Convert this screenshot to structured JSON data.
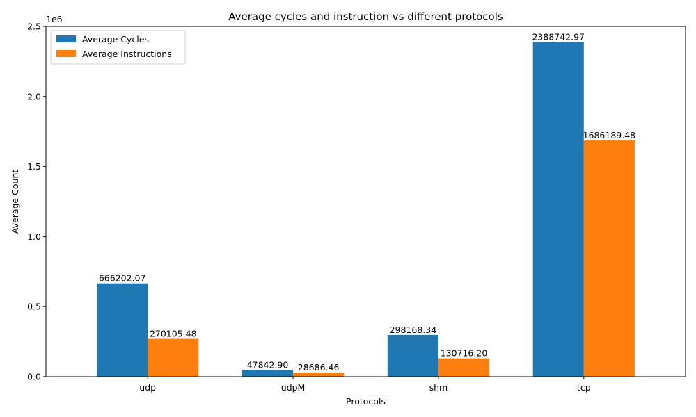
{
  "chart_data": {
    "type": "bar",
    "title": "Average cycles and instruction vs different protocols",
    "xlabel": "Protocols",
    "ylabel": "Average Count",
    "y_scale_multiplier": "1e6",
    "categories": [
      "udp",
      "udpM",
      "shm",
      "tcp"
    ],
    "series": [
      {
        "name": "Average Cycles",
        "color": "#1f77b4",
        "values": [
          666202.07,
          47842.9,
          298168.34,
          2388742.97
        ],
        "labels": [
          "666202.07",
          "47842.90",
          "298168.34",
          "2388742.97"
        ]
      },
      {
        "name": "Average Instructions",
        "color": "#ff7f0e",
        "values": [
          270105.48,
          28686.46,
          130716.2,
          1686189.48
        ],
        "labels": [
          "270105.48",
          "28686.46",
          "130716.20",
          "1686189.48"
        ]
      }
    ],
    "ylim": [
      0,
      2500000
    ],
    "yticks": [
      0,
      500000,
      1000000,
      1500000,
      2000000,
      2500000
    ],
    "ytick_labels": [
      "0.0",
      "0.5",
      "1.0",
      "1.5",
      "2.0",
      "2.5"
    ],
    "grid": false,
    "legend_position": "top-left"
  }
}
